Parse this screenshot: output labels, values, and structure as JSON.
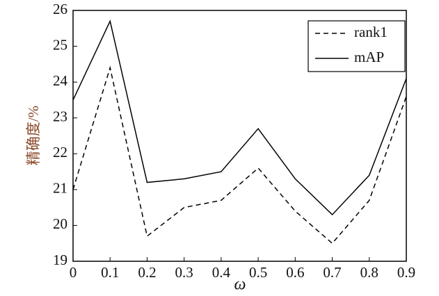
{
  "chart_data": {
    "type": "line",
    "x_label": "ω",
    "y_label": "精确度/%",
    "x": [
      0,
      0.1,
      0.2,
      0.3,
      0.4,
      0.5,
      0.6,
      0.7,
      0.8,
      0.9
    ],
    "series": [
      {
        "name": "rank1",
        "color": "#000000",
        "line_style": "dashed",
        "values": [
          21.0,
          24.4,
          19.7,
          20.5,
          20.7,
          21.6,
          20.4,
          19.5,
          20.7,
          23.6
        ]
      },
      {
        "name": "mAP",
        "color": "#000000",
        "line_style": "solid",
        "values": [
          23.5,
          25.7,
          21.2,
          21.3,
          21.5,
          22.7,
          21.3,
          20.3,
          21.4,
          24.1
        ]
      }
    ],
    "xlim": [
      0,
      0.9
    ],
    "xticks": [
      0,
      0.1,
      0.2,
      0.3,
      0.4,
      0.5,
      0.6,
      0.7,
      0.8,
      0.9
    ],
    "ylim": [
      19,
      26
    ],
    "yticks": [
      19,
      20,
      21,
      22,
      23,
      24,
      25,
      26
    ],
    "legend": "top-right",
    "grid": false
  }
}
